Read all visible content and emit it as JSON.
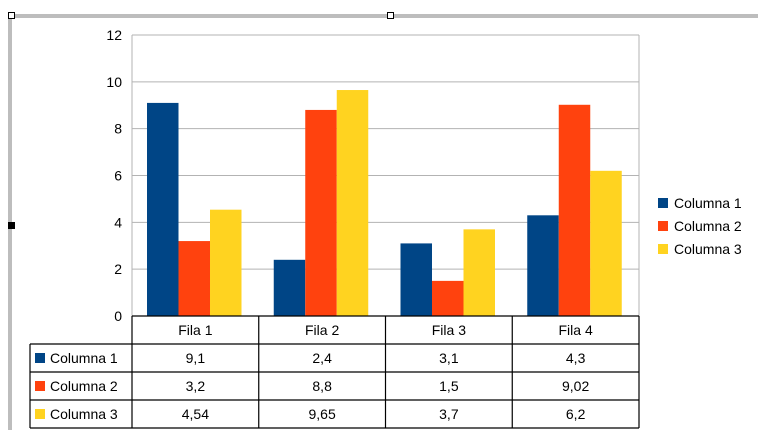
{
  "colors": {
    "series": [
      "#004586",
      "#ff420e",
      "#ffd320"
    ],
    "grid": "#b3b3b3",
    "axis": "#000000",
    "frame": "#bdbdbd"
  },
  "chart_data": {
    "type": "bar",
    "categories": [
      "Fila 1",
      "Fila 2",
      "Fila 3",
      "Fila 4"
    ],
    "series": [
      {
        "name": "Columna 1",
        "values": [
          9.1,
          2.4,
          3.1,
          4.3
        ],
        "labels": [
          "9,1",
          "2,4",
          "3,1",
          "4,3"
        ]
      },
      {
        "name": "Columna 2",
        "values": [
          3.2,
          8.8,
          1.5,
          9.02
        ],
        "labels": [
          "3,2",
          "8,8",
          "1,5",
          "9,02"
        ]
      },
      {
        "name": "Columna 3",
        "values": [
          4.54,
          9.65,
          3.7,
          6.2
        ],
        "labels": [
          "4,54",
          "9,65",
          "3,7",
          "6,2"
        ]
      }
    ],
    "yticks": [
      "0",
      "2",
      "4",
      "6",
      "8",
      "10",
      "12"
    ],
    "ylim": [
      0,
      12
    ],
    "grid": true,
    "legend": "right",
    "data_table": true
  }
}
